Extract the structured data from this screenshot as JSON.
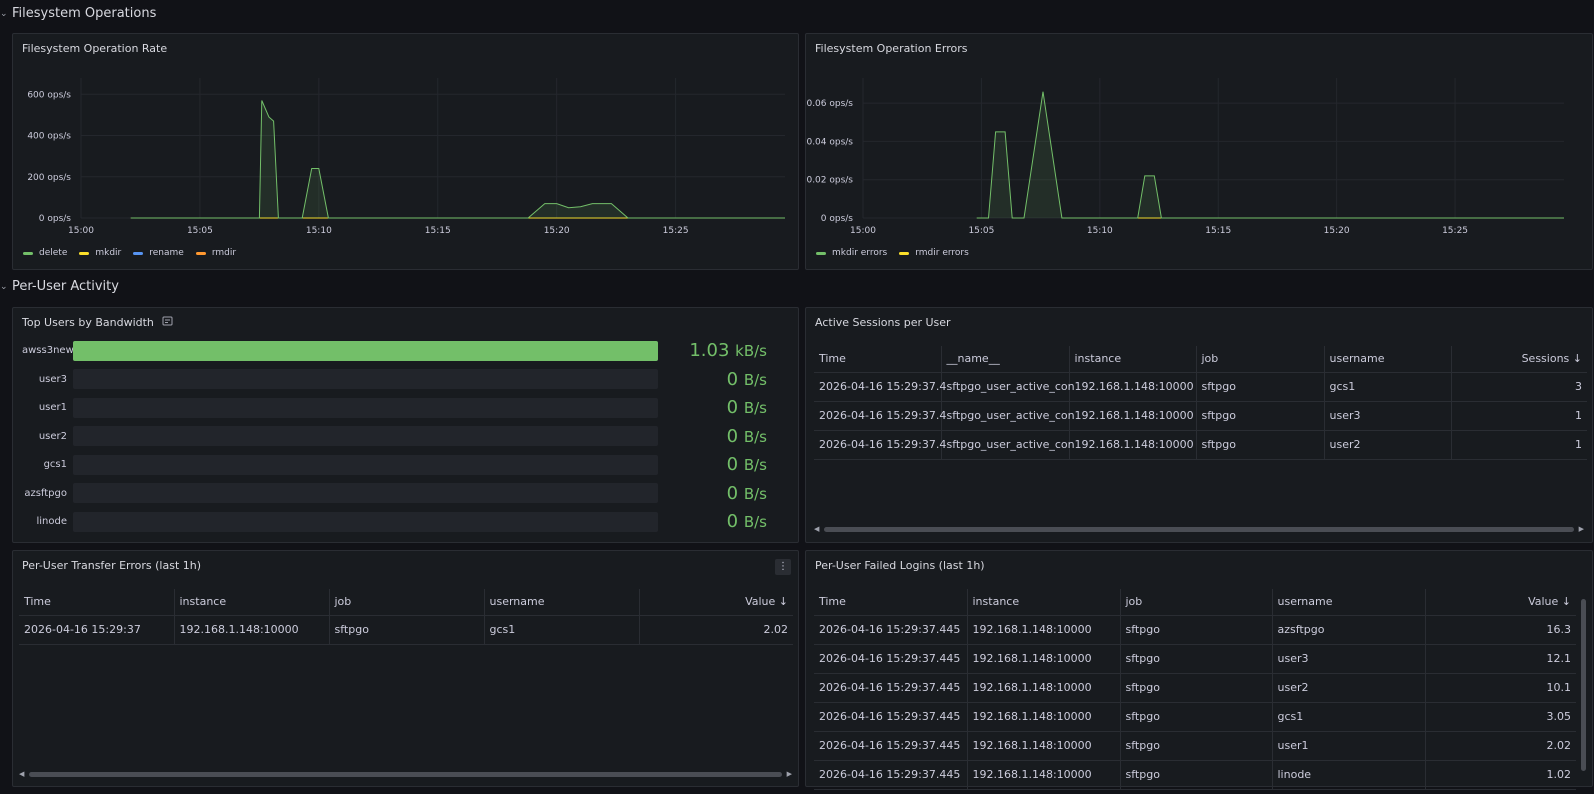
{
  "rows": [
    {
      "title": "Filesystem Operations"
    },
    {
      "title": "Per-User Activity"
    }
  ],
  "colors": {
    "green": "#73bf69",
    "yellow": "#fade2a",
    "blue": "#5794f2",
    "orange": "#ff9830"
  },
  "charts": {
    "op_rate": {
      "title": "Filesystem Operation Rate",
      "chart_data": {
        "type": "line",
        "y_ticks": [
          "0 ops/s",
          "200 ops/s",
          "400 ops/s",
          "600 ops/s"
        ],
        "x_ticks": [
          "15:00",
          "15:05",
          "15:10",
          "15:15",
          "15:20",
          "15:25"
        ],
        "ylim": [
          0,
          650
        ],
        "xlim": [
          0,
          29.6
        ],
        "series": [
          {
            "name": "delete",
            "color": "#73bf69",
            "points": [
              [
                2.1,
                0
              ],
              [
                7.5,
                0
              ],
              [
                7.6,
                570
              ],
              [
                7.9,
                490
              ],
              [
                8.1,
                470
              ],
              [
                8.3,
                0
              ],
              [
                9.3,
                0
              ],
              [
                9.7,
                240
              ],
              [
                10.0,
                240
              ],
              [
                10.4,
                0
              ],
              [
                18.8,
                0
              ],
              [
                19.5,
                70
              ],
              [
                20.0,
                70
              ],
              [
                20.5,
                50
              ],
              [
                21.0,
                55
              ],
              [
                21.5,
                70
              ],
              [
                22.3,
                70
              ],
              [
                23.0,
                0
              ],
              [
                29.6,
                0
              ]
            ]
          },
          {
            "name": "mkdir",
            "color": "#fade2a",
            "points": [
              [
                2.1,
                0
              ],
              [
                29.6,
                0
              ]
            ]
          },
          {
            "name": "rename",
            "color": "#5794f2",
            "points": [
              [
                2.1,
                0
              ],
              [
                29.6,
                0
              ]
            ]
          },
          {
            "name": "rmdir",
            "color": "#ff9830",
            "points": [
              [
                2.1,
                0
              ],
              [
                29.6,
                0
              ]
            ]
          }
        ]
      }
    },
    "op_errors": {
      "title": "Filesystem Operation Errors",
      "chart_data": {
        "type": "line",
        "y_ticks": [
          "0 ops/s",
          "0.02 ops/s",
          "0.04 ops/s",
          "0.06 ops/s"
        ],
        "x_ticks": [
          "15:00",
          "15:05",
          "15:10",
          "15:15",
          "15:20",
          "15:25"
        ],
        "ylim": [
          0,
          0.07
        ],
        "xlim": [
          0,
          29.6
        ],
        "series": [
          {
            "name": "mkdir errors",
            "color": "#73bf69",
            "points": [
              [
                4.8,
                0
              ],
              [
                5.3,
                0
              ],
              [
                5.6,
                0.045
              ],
              [
                6.0,
                0.045
              ],
              [
                6.3,
                0
              ],
              [
                6.8,
                0
              ],
              [
                7.6,
                0.066
              ],
              [
                8.4,
                0
              ],
              [
                11.6,
                0
              ],
              [
                11.9,
                0.022
              ],
              [
                12.3,
                0.022
              ],
              [
                12.6,
                0
              ],
              [
                29.6,
                0
              ]
            ]
          },
          {
            "name": "rmdir errors",
            "color": "#fade2a",
            "points": [
              [
                8.4,
                0
              ],
              [
                29.6,
                0
              ]
            ]
          }
        ]
      }
    }
  },
  "top_users": {
    "title": "Top Users by Bandwidth",
    "items": [
      {
        "name": "awss3new",
        "value": "1.03",
        "unit": "kB/s",
        "fraction": 1.0
      },
      {
        "name": "user3",
        "value": "0",
        "unit": "B/s",
        "fraction": 0
      },
      {
        "name": "user1",
        "value": "0",
        "unit": "B/s",
        "fraction": 0
      },
      {
        "name": "user2",
        "value": "0",
        "unit": "B/s",
        "fraction": 0
      },
      {
        "name": "gcs1",
        "value": "0",
        "unit": "B/s",
        "fraction": 0
      },
      {
        "name": "azsftpgo",
        "value": "0",
        "unit": "B/s",
        "fraction": 0
      },
      {
        "name": "linode",
        "value": "0",
        "unit": "B/s",
        "fraction": 0
      }
    ]
  },
  "sessions": {
    "title": "Active Sessions per User",
    "columns": [
      "Time",
      "__name__",
      "instance",
      "job",
      "username",
      "Sessions ↓"
    ],
    "rows": [
      [
        "2026-04-16 15:29:37.4",
        "sftpgo_user_active_con",
        "192.168.1.148:10000",
        "sftpgo",
        "gcs1",
        "3"
      ],
      [
        "2026-04-16 15:29:37.4",
        "sftpgo_user_active_con",
        "192.168.1.148:10000",
        "sftpgo",
        "user3",
        "1"
      ],
      [
        "2026-04-16 15:29:37.4",
        "sftpgo_user_active_con",
        "192.168.1.148:10000",
        "sftpgo",
        "user2",
        "1"
      ]
    ]
  },
  "transfer_errors": {
    "title": "Per-User Transfer Errors (last 1h)",
    "columns": [
      "Time",
      "instance",
      "job",
      "username",
      "Value ↓"
    ],
    "rows": [
      [
        "2026-04-16 15:29:37",
        "192.168.1.148:10000",
        "sftpgo",
        "gcs1",
        "2.02"
      ]
    ]
  },
  "failed_logins": {
    "title": "Per-User Failed Logins (last 1h)",
    "columns": [
      "Time",
      "instance",
      "job",
      "username",
      "Value ↓"
    ],
    "rows": [
      [
        "2026-04-16 15:29:37.445",
        "192.168.1.148:10000",
        "sftpgo",
        "azsftpgo",
        "16.3"
      ],
      [
        "2026-04-16 15:29:37.445",
        "192.168.1.148:10000",
        "sftpgo",
        "user3",
        "12.1"
      ],
      [
        "2026-04-16 15:29:37.445",
        "192.168.1.148:10000",
        "sftpgo",
        "user2",
        "10.1"
      ],
      [
        "2026-04-16 15:29:37.445",
        "192.168.1.148:10000",
        "sftpgo",
        "gcs1",
        "3.05"
      ],
      [
        "2026-04-16 15:29:37.445",
        "192.168.1.148:10000",
        "sftpgo",
        "user1",
        "2.02"
      ],
      [
        "2026-04-16 15:29:37.445",
        "192.168.1.148:10000",
        "sftpgo",
        "linode",
        "1.02"
      ]
    ]
  }
}
